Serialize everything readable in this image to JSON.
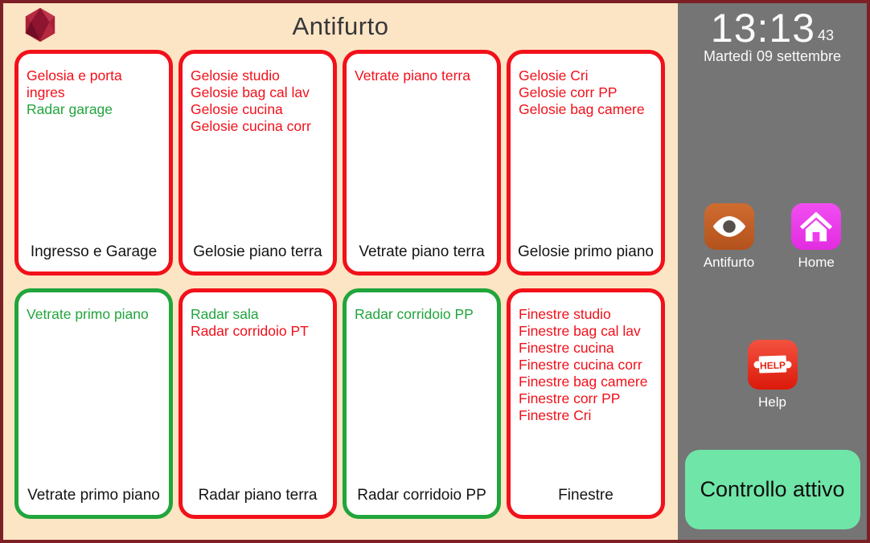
{
  "colors": {
    "red": "#f2101a",
    "green": "#21a53c",
    "cream": "#fce5c4",
    "sidebar": "#757575",
    "mint": "#6fe5a7",
    "orange": "#c4601f",
    "magenta": "#ee3dee",
    "help_red": "#e8301c",
    "gem_dark": "#8e1430",
    "gem_mid": "#a82038",
    "gem_light": "#c0354b"
  },
  "header": {
    "title": "Antifurto",
    "logo_icon": "gem-icon"
  },
  "zones": [
    {
      "label": "Ingresso e Garage",
      "state": "red",
      "items": [
        {
          "text": "Gelosia e porta ingres",
          "state": "red"
        },
        {
          "text": "Radar garage",
          "state": "green"
        }
      ]
    },
    {
      "label": "Gelosie piano terra",
      "state": "red",
      "items": [
        {
          "text": "Gelosie studio",
          "state": "red"
        },
        {
          "text": "Gelosie bag cal lav",
          "state": "red"
        },
        {
          "text": "Gelosie cucina",
          "state": "red"
        },
        {
          "text": "Gelosie cucina corr",
          "state": "red"
        }
      ]
    },
    {
      "label": "Vetrate piano terra",
      "state": "red",
      "items": [
        {
          "text": "Vetrate piano terra",
          "state": "red"
        }
      ]
    },
    {
      "label": "Gelosie primo piano",
      "state": "red",
      "items": [
        {
          "text": "Gelosie Cri",
          "state": "red"
        },
        {
          "text": "Gelosie corr PP",
          "state": "red"
        },
        {
          "text": "Gelosie bag camere",
          "state": "red"
        }
      ]
    },
    {
      "label": "Vetrate primo piano",
      "state": "green",
      "items": [
        {
          "text": "Vetrate primo piano",
          "state": "green"
        }
      ]
    },
    {
      "label": "Radar piano terra",
      "state": "red",
      "items": [
        {
          "text": "Radar sala",
          "state": "green"
        },
        {
          "text": "Radar corridoio PT",
          "state": "red"
        }
      ]
    },
    {
      "label": "Radar corridoio PP",
      "state": "green",
      "items": [
        {
          "text": "Radar corridoio PP",
          "state": "green"
        }
      ]
    },
    {
      "label": "Finestre",
      "state": "red",
      "items": [
        {
          "text": "Finestre studio",
          "state": "red"
        },
        {
          "text": "Finestre bag cal lav",
          "state": "red"
        },
        {
          "text": "Finestre cucina",
          "state": "red"
        },
        {
          "text": "Finestre cucina corr",
          "state": "red"
        },
        {
          "text": "Finestre bag camere",
          "state": "red"
        },
        {
          "text": "Finestre corr PP",
          "state": "red"
        },
        {
          "text": "Finestre Cri",
          "state": "red"
        }
      ]
    }
  ],
  "sidebar": {
    "clock": {
      "time": "13:13",
      "seconds": "43",
      "date": "Martedì 09 settembre"
    },
    "nav": [
      {
        "label": "Antifurto",
        "icon": "eye-icon"
      },
      {
        "label": "Home",
        "icon": "home-icon"
      }
    ],
    "help": {
      "label": "Help",
      "icon": "help-banner-icon",
      "banner_text": "HELP"
    },
    "control_button_label": "Controllo attivo"
  }
}
